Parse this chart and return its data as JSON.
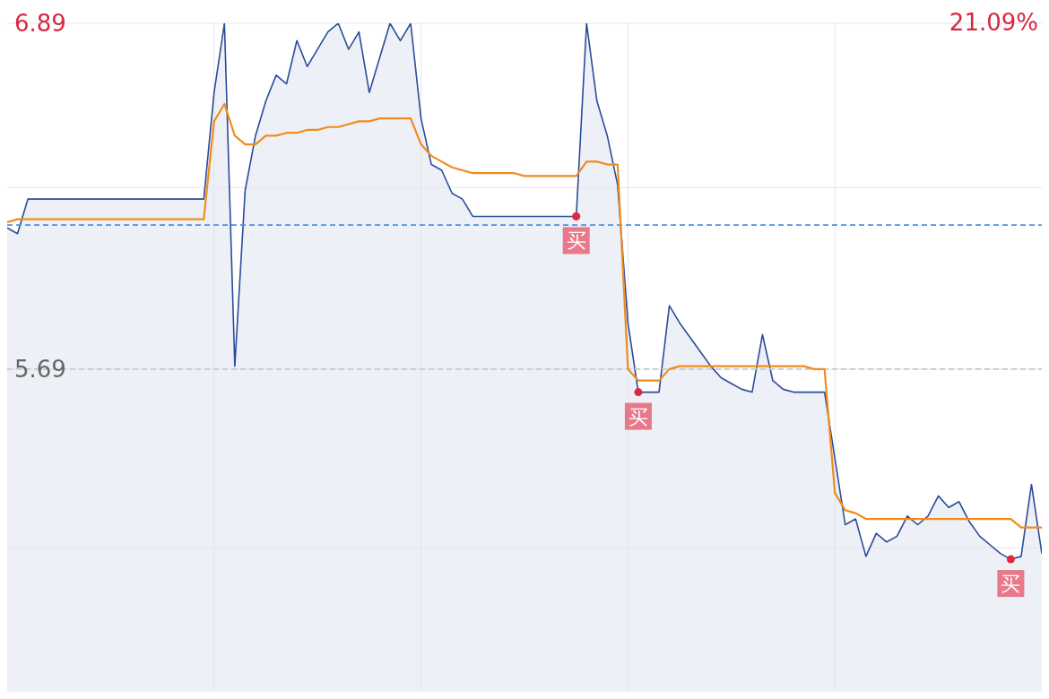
{
  "chart_data": {
    "type": "line",
    "categories": [
      null,
      null,
      null,
      null,
      null,
      null,
      null,
      null,
      null,
      null,
      null,
      null,
      null,
      null,
      null,
      null,
      null,
      null,
      null,
      null,
      null,
      null,
      null,
      null,
      null,
      null,
      null,
      null,
      null,
      null,
      null,
      null,
      null,
      null,
      null,
      null,
      null,
      null,
      null,
      null,
      null,
      null,
      null,
      null,
      null,
      null,
      null,
      null,
      null,
      null,
      null,
      null,
      null,
      null,
      null,
      null,
      null,
      null,
      null,
      null,
      null,
      null,
      null,
      null,
      null,
      null,
      null,
      null,
      null,
      null,
      null,
      null,
      null,
      null,
      null,
      null,
      null,
      null,
      null,
      null,
      null,
      null,
      null,
      null,
      null,
      null,
      null,
      null,
      null,
      null,
      null,
      null,
      null,
      null,
      null,
      null,
      null,
      null,
      null,
      null,
      null
    ],
    "ylim": [
      4.57,
      6.89
    ],
    "yticks": [
      {
        "value": 6.89,
        "label": "6.89"
      },
      {
        "value": 6.32,
        "label": null
      },
      {
        "value": 5.69,
        "label": "5.69"
      },
      {
        "value": 5.07,
        "label": null
      }
    ],
    "grid": true,
    "ref_lines": [
      {
        "axis": "y",
        "value": 5.69,
        "color": "#c8c8c8",
        "line_style": "dashed"
      },
      {
        "axis": "y",
        "value": 6.19,
        "color": "#4a90e2",
        "line_style": "dashed"
      }
    ],
    "series": [
      {
        "type": "area",
        "color": "#2b4c9b",
        "values": [
          6.18,
          6.16,
          6.28,
          6.28,
          6.28,
          6.28,
          6.28,
          6.28,
          6.28,
          6.28,
          6.28,
          6.28,
          6.28,
          6.28,
          6.28,
          6.28,
          6.28,
          6.28,
          6.28,
          6.28,
          6.65,
          6.89,
          5.7,
          6.31,
          6.5,
          6.62,
          6.71,
          6.68,
          6.83,
          6.74,
          6.8,
          6.86,
          6.89,
          6.8,
          6.86,
          6.65,
          6.77,
          6.89,
          6.83,
          6.89,
          6.56,
          6.4,
          6.38,
          6.3,
          6.28,
          6.22,
          6.22,
          6.22,
          6.22,
          6.22,
          6.22,
          6.22,
          6.22,
          6.22,
          6.22,
          6.22,
          6.89,
          6.62,
          6.5,
          6.33,
          5.85,
          5.61,
          5.61,
          5.61,
          5.91,
          5.85,
          5.8,
          5.75,
          5.7,
          5.66,
          5.64,
          5.62,
          5.61,
          5.81,
          5.65,
          5.62,
          5.61,
          5.61,
          5.61,
          5.61,
          5.38,
          5.15,
          5.17,
          5.04,
          5.12,
          5.09,
          5.11,
          5.18,
          5.15,
          5.18,
          5.25,
          5.21,
          5.23,
          5.16,
          5.11,
          5.08,
          5.05,
          5.03,
          5.04,
          5.29,
          5.05
        ]
      },
      {
        "color": "#f08c1e",
        "values": [
          6.2,
          6.21,
          6.21,
          6.21,
          6.21,
          6.21,
          6.21,
          6.21,
          6.21,
          6.21,
          6.21,
          6.21,
          6.21,
          6.21,
          6.21,
          6.21,
          6.21,
          6.21,
          6.21,
          6.21,
          6.55,
          6.61,
          6.5,
          6.47,
          6.47,
          6.5,
          6.5,
          6.51,
          6.51,
          6.52,
          6.52,
          6.53,
          6.53,
          6.54,
          6.55,
          6.55,
          6.56,
          6.56,
          6.56,
          6.56,
          6.47,
          6.43,
          6.41,
          6.39,
          6.38,
          6.37,
          6.37,
          6.37,
          6.37,
          6.37,
          6.36,
          6.36,
          6.36,
          6.36,
          6.36,
          6.36,
          6.41,
          6.41,
          6.4,
          6.4,
          5.69,
          5.65,
          5.65,
          5.65,
          5.69,
          5.7,
          5.7,
          5.7,
          5.7,
          5.7,
          5.7,
          5.7,
          5.7,
          5.7,
          5.7,
          5.7,
          5.7,
          5.7,
          5.69,
          5.69,
          5.26,
          5.2,
          5.19,
          5.17,
          5.17,
          5.17,
          5.17,
          5.17,
          5.17,
          5.17,
          5.17,
          5.17,
          5.17,
          5.17,
          5.17,
          5.17,
          5.17,
          5.17,
          5.14,
          5.14,
          5.14
        ]
      },
      {
        "type": "scatter",
        "color": "#e0283c",
        "values": [
          null,
          null,
          null,
          null,
          null,
          null,
          null,
          null,
          null,
          null,
          null,
          null,
          null,
          null,
          null,
          null,
          null,
          null,
          null,
          null,
          null,
          null,
          null,
          null,
          null,
          null,
          null,
          null,
          null,
          null,
          null,
          null,
          null,
          null,
          null,
          null,
          null,
          null,
          null,
          null,
          null,
          null,
          null,
          null,
          null,
          null,
          null,
          null,
          null,
          null,
          null,
          null,
          null,
          null,
          null,
          6.22,
          null,
          null,
          null,
          null,
          null,
          5.61,
          null,
          null,
          null,
          null,
          null,
          null,
          null,
          null,
          null,
          null,
          null,
          null,
          null,
          null,
          null,
          null,
          null,
          null,
          null,
          null,
          null,
          null,
          null,
          null,
          null,
          null,
          null,
          null,
          null,
          null,
          null,
          null,
          null,
          null,
          null,
          5.03,
          null,
          null,
          null
        ]
      }
    ],
    "annotations": [
      "21.09%",
      {
        "text": "买",
        "y": 6.22
      },
      {
        "text": "买",
        "y": 5.61
      },
      {
        "text": "买",
        "y": 5.03
      }
    ]
  }
}
